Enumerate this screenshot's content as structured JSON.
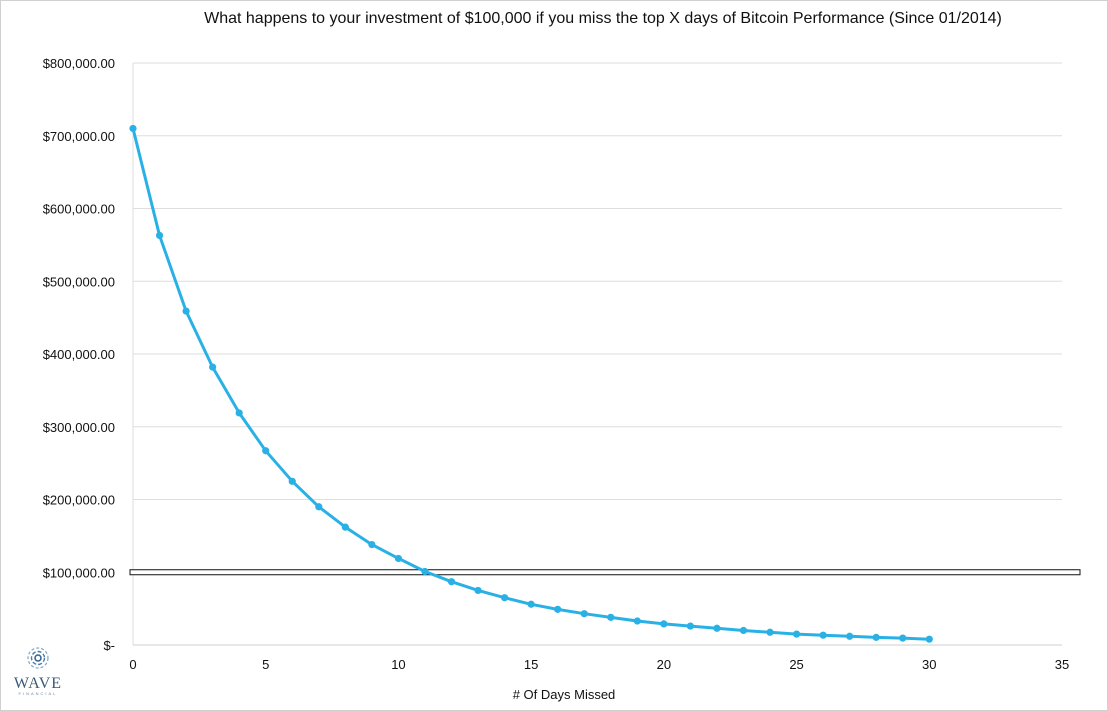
{
  "chart_data": {
    "type": "line",
    "title": "What happens to your investment of $100,000 if you miss the top X days of Bitcoin Performance (Since 01/2014)",
    "xlabel": "# Of Days Missed",
    "ylabel": "",
    "xlim": [
      0,
      35
    ],
    "ylim": [
      0,
      800000
    ],
    "xticks": [
      "0",
      "5",
      "10",
      "15",
      "20",
      "25",
      "30",
      "35"
    ],
    "yticks": [
      "$-",
      "$100,000.00",
      "$200,000.00",
      "$300,000.00",
      "$400,000.00",
      "$500,000.00",
      "$600,000.00",
      "$700,000.00",
      "$800,000.00"
    ],
    "grid": true,
    "legend": "none",
    "series": [
      {
        "color": "#29b1e6",
        "x": [
          0,
          1,
          2,
          3,
          4,
          5,
          6,
          7,
          8,
          9,
          10,
          11,
          12,
          13,
          14,
          15,
          16,
          17,
          18,
          19,
          20,
          21,
          22,
          23,
          24,
          25,
          26,
          27,
          28,
          29,
          30
        ],
        "values": [
          710000,
          563000,
          459000,
          382000,
          319000,
          267000,
          225000,
          190000,
          162000,
          138000,
          119000,
          101000,
          87000,
          75000,
          65000,
          56000,
          49000,
          43000,
          38000,
          33000,
          29000,
          26000,
          23000,
          20000,
          17500,
          15000,
          13500,
          12000,
          10500,
          9500,
          8000
        ]
      }
    ],
    "reference_line": {
      "value": 100000,
      "color": "#111111"
    }
  },
  "logo": {
    "name": "WAVE",
    "sub": "FINANCIAL"
  }
}
